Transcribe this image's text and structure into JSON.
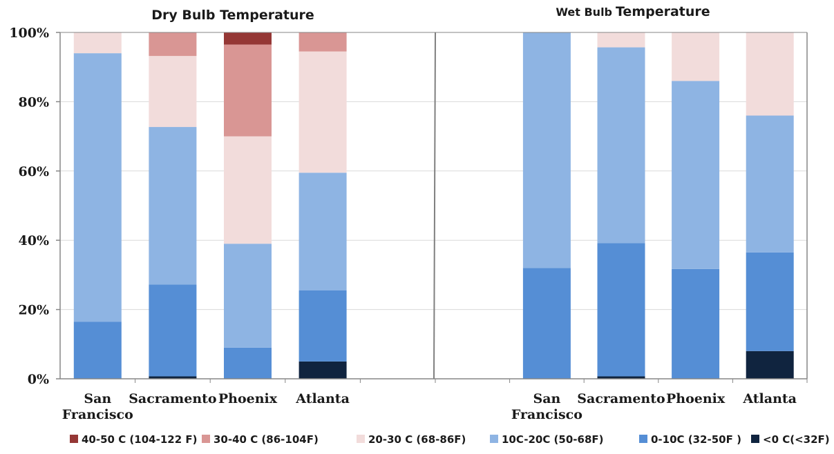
{
  "chart_data": [
    {
      "type": "bar",
      "stacked": true,
      "normalized": true,
      "title": "Dry Bulb Temperature",
      "categories": [
        [
          "San",
          "Francisco"
        ],
        [
          "Sacramento"
        ],
        [
          "Phoenix"
        ],
        [
          "Atlanta"
        ],
        [
          ""
        ]
      ],
      "ylim": [
        0,
        100
      ],
      "yticks": [
        "0%",
        "20%",
        "40%",
        "60%",
        "80%",
        "100%"
      ],
      "series": [
        {
          "name": "<0 C(<32F)",
          "color": "#10243f",
          "values": [
            0,
            0.7,
            0,
            5,
            0
          ]
        },
        {
          "name": "0-10C (32-50F )",
          "color": "#558ed5",
          "values": [
            16.5,
            26.5,
            9,
            20.5,
            0
          ]
        },
        {
          "name": "10C-20C (50-68F)",
          "color": "#8eb4e3",
          "values": [
            77.5,
            45.5,
            30,
            34,
            0
          ]
        },
        {
          "name": "20-30 C (68-86F)",
          "color": "#f2dcdb",
          "values": [
            6,
            20.5,
            31,
            35,
            0
          ]
        },
        {
          "name": "30-40 C (86-104F)",
          "color": "#d99694",
          "values": [
            0,
            6.8,
            26.5,
            5.5,
            0
          ]
        },
        {
          "name": "40-50 C (104-122 F)",
          "color": "#953735",
          "values": [
            0,
            0,
            3.5,
            0,
            0
          ]
        }
      ]
    },
    {
      "type": "bar",
      "stacked": true,
      "normalized": true,
      "title_prefix": "Wet Bulb",
      "title_suffix": "Temperature",
      "categories": [
        [
          ""
        ],
        [
          "San",
          "Francisco"
        ],
        [
          "Sacramento"
        ],
        [
          "Phoenix"
        ],
        [
          "Atlanta"
        ]
      ],
      "ylim": [
        0,
        100
      ],
      "series": [
        {
          "name": "<0 C(<32F)",
          "color": "#10243f",
          "values": [
            0,
            0,
            0.7,
            0,
            8
          ]
        },
        {
          "name": "0-10C (32-50F )",
          "color": "#558ed5",
          "values": [
            0,
            32,
            38.5,
            31.7,
            28.5
          ]
        },
        {
          "name": "10C-20C (50-68F)",
          "color": "#8eb4e3",
          "values": [
            0,
            68,
            56.5,
            54.3,
            39.5
          ]
        },
        {
          "name": "20-30 C (68-86F)",
          "color": "#f2dcdb",
          "values": [
            0,
            0,
            4.3,
            14,
            24
          ]
        },
        {
          "name": "30-40 C (86-104F)",
          "color": "#d99694",
          "values": [
            0,
            0,
            0,
            0,
            0
          ]
        },
        {
          "name": "40-50 C (104-122 F)",
          "color": "#953735",
          "values": [
            0,
            0,
            0,
            0,
            0
          ]
        }
      ]
    }
  ],
  "legend": [
    {
      "label": "40-50 C (104-122 F)",
      "color": "#953735"
    },
    {
      "label": "30-40 C (86-104F)",
      "color": "#d99694"
    },
    {
      "label": "20-30 C (68-86F)",
      "color": "#f2dcdb"
    },
    {
      "label": "10C-20C (50-68F)",
      "color": "#8eb4e3"
    },
    {
      "label": "0-10C (32-50F )",
      "color": "#558ed5"
    },
    {
      "label": "<0 C(<32F)",
      "color": "#10243f"
    }
  ]
}
